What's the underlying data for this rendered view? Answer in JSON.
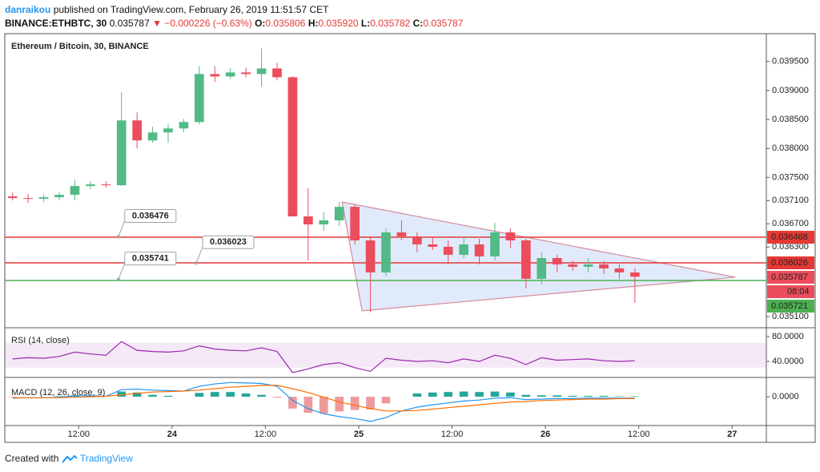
{
  "header": {
    "author": "danraikou",
    "published": "published on TradingView.com, February 26, 2019 11:51:57 CET",
    "symbol": "BINANCE:ETHBTC, 30",
    "last": "0.035787",
    "change": "▼ −0.000226 (−0.63%)",
    "ohlc": [
      {
        "label": "O:",
        "value": "0.035806"
      },
      {
        "label": "H:",
        "value": "0.035920"
      },
      {
        "label": "L:",
        "value": "0.035782"
      },
      {
        "label": "C:",
        "value": "0.035787"
      }
    ]
  },
  "footer": {
    "created": "Created with",
    "brand": "TradingView"
  },
  "chart_data": [
    {
      "type": "candlestick",
      "title": "Ethereum / Bitcoin, 30, BINANCE",
      "up_color": "#53b987",
      "down_color": "#eb4d5c",
      "x": [
        3.5,
        5.5,
        7.5,
        9.5,
        11.5,
        13.5,
        15.5,
        17.5,
        19.5,
        21.5,
        23.5,
        25.5,
        27.5,
        29.5,
        31.5,
        33.5,
        35.5,
        37.5,
        39.5,
        41.5,
        43.5,
        45.5,
        47.5,
        49.5,
        51.5,
        53.5,
        55.5,
        57.5,
        59.5,
        61.5,
        63.5,
        65.5,
        67.5,
        69.5,
        71.5,
        73.5,
        75.5,
        77.5,
        79.5,
        81.5,
        83.5
      ],
      "open": [
        0.037172,
        0.037144,
        0.037131,
        0.037158,
        0.0372,
        0.037351,
        0.037379,
        0.037365,
        0.038483,
        0.038138,
        0.038276,
        0.038345,
        0.038455,
        0.039283,
        0.039242,
        0.039311,
        0.039283,
        0.03938,
        0.039228,
        0.036827,
        0.036689,
        0.036758,
        0.036993,
        0.036413,
        0.035861,
        0.036551,
        0.036482,
        0.036344,
        0.036303,
        0.036165,
        0.036344,
        0.036137,
        0.036551,
        0.036413,
        0.035751,
        0.036109,
        0.035999,
        0.035958,
        0.035999,
        0.03593,
        0.035861
      ],
      "high": [
        0.037241,
        0.037213,
        0.0372,
        0.037241,
        0.037448,
        0.037434,
        0.037434,
        0.038966,
        0.038621,
        0.038373,
        0.038414,
        0.038511,
        0.039421,
        0.039421,
        0.03938,
        0.039394,
        0.039725,
        0.039477,
        0.039242,
        0.03731,
        0.036896,
        0.037075,
        0.037034,
        0.036482,
        0.03662,
        0.036758,
        0.036551,
        0.036482,
        0.036413,
        0.036482,
        0.036441,
        0.036717,
        0.03662,
        0.036441,
        0.036206,
        0.036165,
        0.036068,
        0.036109,
        0.036054,
        0.035999,
        0.03593
      ],
      "low": [
        0.037103,
        0.037062,
        0.037075,
        0.037103,
        0.037103,
        0.037296,
        0.037324,
        0.037351,
        0.038,
        0.038097,
        0.038097,
        0.038276,
        0.038414,
        0.039145,
        0.039201,
        0.039228,
        0.039063,
        0.039173,
        0.036827,
        0.036068,
        0.036579,
        0.036661,
        0.036344,
        0.035171,
        0.035792,
        0.036413,
        0.036206,
        0.036247,
        0.035999,
        0.036109,
        0.035999,
        0.036068,
        0.036275,
        0.035585,
        0.035654,
        0.035861,
        0.035889,
        0.035861,
        0.035833,
        0.035751,
        0.035337
      ],
      "close": [
        0.037144,
        0.037131,
        0.037158,
        0.0372,
        0.037351,
        0.037379,
        0.037365,
        0.038483,
        0.038138,
        0.038276,
        0.038345,
        0.038455,
        0.039283,
        0.039242,
        0.039311,
        0.039283,
        0.03938,
        0.039228,
        0.036827,
        0.036689,
        0.036758,
        0.036993,
        0.036413,
        0.035861,
        0.036551,
        0.036482,
        0.036344,
        0.036303,
        0.036165,
        0.036344,
        0.036137,
        0.036551,
        0.036413,
        0.035751,
        0.036109,
        0.035999,
        0.035958,
        0.035999,
        0.03593,
        0.035861,
        0.035787
      ],
      "xlim": [
        2.5,
        100.4
      ],
      "xticks": [
        {
          "value": 12,
          "label": "12:00"
        },
        {
          "value": 24,
          "label": "24"
        },
        {
          "value": 36,
          "label": "12:00"
        },
        {
          "value": 48,
          "label": "25"
        },
        {
          "value": 60,
          "label": "12:00"
        },
        {
          "value": 72,
          "label": "26"
        },
        {
          "value": 84,
          "label": "12:00"
        },
        {
          "value": 96,
          "label": "27"
        }
      ],
      "ylim": [
        0.03492,
        0.03998
      ],
      "yticks": [
        {
          "value": 0.0351,
          "label": "0.035100"
        },
        {
          "value": 0.0363,
          "label": "0.036300"
        },
        {
          "value": 0.0367,
          "label": "0.036700"
        },
        {
          "value": 0.0371,
          "label": "0.037100"
        },
        {
          "value": 0.0375,
          "label": "0.037500"
        },
        {
          "value": 0.038,
          "label": "0.038000"
        },
        {
          "value": 0.0385,
          "label": "0.038500"
        },
        {
          "value": 0.039,
          "label": "0.039000"
        },
        {
          "value": 0.0395,
          "label": "0.039500"
        }
      ],
      "hlines": [
        {
          "price": 0.036468,
          "color": "#e53935"
        },
        {
          "price": 0.036026,
          "color": "#e53935"
        },
        {
          "price": 0.035721,
          "color": "#4caf50"
        }
      ],
      "last_price": 0.035787,
      "countdown": "08:04",
      "callouts": [
        {
          "value": 0.036476,
          "x": 17.1
        },
        {
          "value": 0.036023,
          "x": 27.1
        },
        {
          "value": 0.035741,
          "x": 17.1
        }
      ],
      "triangle": {
        "x": [
          45.86,
          48.43,
          96.42
        ],
        "prices": [
          0.037075,
          0.035199,
          0.035778
        ]
      }
    },
    {
      "type": "line",
      "title": "RSI (14, close)",
      "color": "#9c27b0",
      "band": [
        30,
        70
      ],
      "x": [
        3.5,
        5.5,
        7.5,
        9.5,
        11.5,
        13.5,
        15.5,
        17.5,
        19.5,
        21.5,
        23.5,
        25.5,
        27.5,
        29.5,
        31.5,
        33.5,
        35.5,
        37.5,
        39.5,
        41.5,
        43.5,
        45.5,
        47.5,
        49.5,
        51.5,
        53.5,
        55.5,
        57.5,
        59.5,
        61.5,
        63.5,
        65.5,
        67.5,
        69.5,
        71.5,
        73.5,
        75.5,
        77.5,
        79.5,
        81.5,
        83.5
      ],
      "values": [
        44,
        46,
        45,
        48,
        55,
        52,
        50,
        72,
        58,
        56,
        55,
        57,
        65,
        60,
        58,
        57,
        62,
        56,
        22,
        28,
        35,
        38,
        30,
        24,
        45,
        42,
        40,
        41,
        38,
        44,
        40,
        50,
        45,
        35,
        46,
        42,
        43,
        44,
        41,
        40,
        41
      ],
      "ylim": [
        15.5,
        92.9
      ],
      "yticks": [
        {
          "value": 40,
          "label": "40.0000"
        },
        {
          "value": 80,
          "label": "80.0000"
        }
      ]
    },
    {
      "type": "macd",
      "title": "MACD (12, 26, close, 9)",
      "x": [
        3.5,
        5.5,
        7.5,
        9.5,
        11.5,
        13.5,
        15.5,
        17.5,
        19.5,
        21.5,
        23.5,
        25.5,
        27.5,
        29.5,
        31.5,
        33.5,
        35.5,
        37.5,
        39.5,
        41.5,
        43.5,
        45.5,
        47.5,
        49.5,
        51.5,
        53.5,
        55.5,
        57.5,
        59.5,
        61.5,
        63.5,
        65.5,
        67.5,
        69.5,
        71.5,
        73.5,
        75.5,
        77.5,
        79.5,
        81.5,
        83.5
      ],
      "series": [
        {
          "name": "MACD",
          "color": "#2196f3",
          "values": [
            -3e-05,
            -2e-05,
            -2e-05,
            -1e-05,
            2e-05,
            2e-05,
            1e-05,
            0.00015,
            0.00016,
            0.00014,
            0.00013,
            0.00012,
            0.00022,
            0.00027,
            0.0003,
            0.00029,
            0.00028,
            0.00022,
            -8e-05,
            -0.00025,
            -0.00036,
            -0.00042,
            -0.00046,
            -0.00052,
            -0.00044,
            -0.0003,
            -0.00022,
            -0.00017,
            -0.00013,
            -9e-05,
            -7e-05,
            -3e-05,
            -2e-05,
            -6e-05,
            -5e-05,
            -4e-05,
            -4e-05,
            -3e-05,
            -3e-05,
            -3e-05,
            -3e-05
          ]
        },
        {
          "name": "Signal",
          "color": "#ff6d00",
          "values": [
            -2e-05,
            -2e-05,
            -2e-05,
            -2e-05,
            -1e-05,
            0,
            1e-05,
            4e-05,
            7e-05,
            0.0001,
            0.00011,
            0.00012,
            0.00014,
            0.00017,
            0.0002,
            0.00022,
            0.00024,
            0.00024,
            0.00017,
            9e-05,
            -1e-05,
            -0.00011,
            -0.00018,
            -0.00025,
            -0.0003,
            -0.0003,
            -0.00029,
            -0.00026,
            -0.00023,
            -0.0002,
            -0.00017,
            -0.00014,
            -0.00011,
            -0.0001,
            -8e-05,
            -7e-05,
            -6e-05,
            -5e-05,
            -5e-05,
            -4e-05,
            -4e-05
          ]
        },
        {
          "name": "Histogram",
          "color": "#26a69a",
          "neg_color": "#ef9a9a",
          "values": [
            -1e-05,
            0,
            0,
            1e-05,
            3e-05,
            2e-05,
            0,
            0.00011,
            9e-05,
            4e-05,
            2e-05,
            0,
            8e-05,
            0.0001,
            0.0001,
            7e-05,
            4e-05,
            -2e-05,
            -0.00025,
            -0.00034,
            -0.00035,
            -0.00031,
            -0.00028,
            -0.00027,
            -0.00014,
            0,
            7e-05,
            9e-05,
            0.0001,
            0.00011,
            0.0001,
            0.00011,
            9e-05,
            4e-05,
            3e-05,
            3e-05,
            2e-05,
            2e-05,
            2e-05,
            1e-05,
            1e-05
          ]
        }
      ],
      "ylim": [
        -0.00059,
        0.00039
      ],
      "yticks": [
        {
          "value": 0,
          "label": "0.0000"
        }
      ]
    }
  ]
}
